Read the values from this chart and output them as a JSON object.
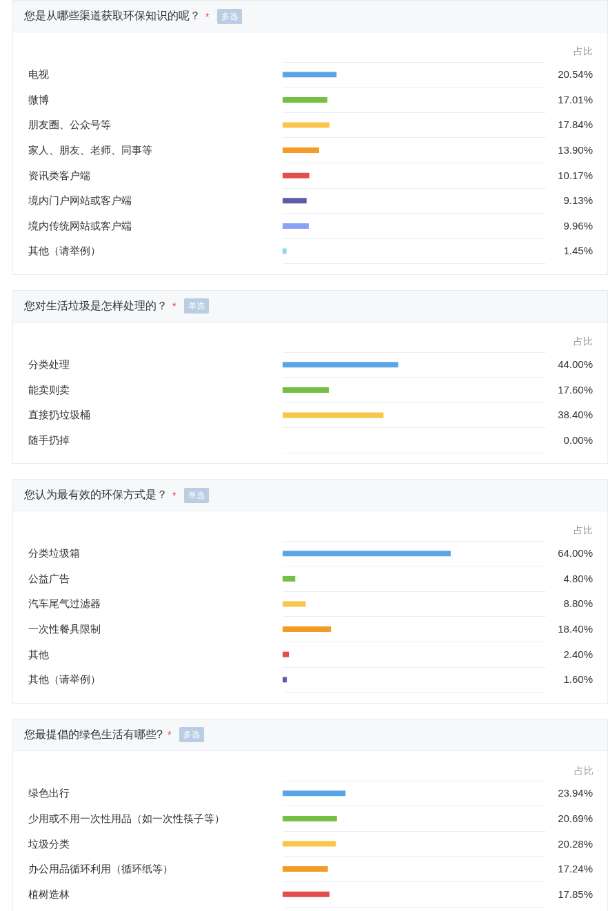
{
  "chart_data": [
    {
      "type": "bar",
      "orientation": "horizontal",
      "title": "您是从哪些渠道获取环保知识的呢？",
      "subtitle": "多选",
      "annotations": [
        "*"
      ],
      "xlabel": "占比",
      "categories": [
        "电视",
        "微博",
        "朋友圈、公众号等",
        "家人、朋友、老师、同事等",
        "资讯类客户端",
        "境内门户网站或客户端",
        "境内传统网站或客户端",
        "其他（请举例）"
      ],
      "values": [
        20.54,
        17.01,
        17.84,
        13.9,
        10.17,
        9.13,
        9.96,
        1.45
      ],
      "value_labels": [
        "20.54%",
        "17.01%",
        "17.84%",
        "13.90%",
        "10.17%",
        "9.13%",
        "9.96%",
        "1.45%"
      ],
      "colors": [
        "#5aa5e6",
        "#74bf44",
        "#f8c64b",
        "#f29b26",
        "#e24d4d",
        "#5b5ea6",
        "#8aa2f5",
        "#87d9e3"
      ],
      "xlim": [
        0,
        100
      ],
      "grid": "y",
      "tick_labels": "y"
    },
    {
      "type": "bar",
      "orientation": "horizontal",
      "title": "您对生活垃圾是怎样处理的？",
      "subtitle": "单选",
      "annotations": [
        "*"
      ],
      "xlabel": "占比",
      "categories": [
        "分类处理",
        "能卖则卖",
        "直接扔垃圾桶",
        "随手扔掉"
      ],
      "values": [
        44.0,
        17.6,
        38.4,
        0.0
      ],
      "value_labels": [
        "44.00%",
        "17.60%",
        "38.40%",
        "0.00%"
      ],
      "colors": [
        "#5aa5e6",
        "#74bf44",
        "#f8c64b",
        "#f29b26"
      ],
      "xlim": [
        0,
        100
      ],
      "grid": "y",
      "tick_labels": "y"
    },
    {
      "type": "bar",
      "orientation": "horizontal",
      "title": "您认为最有效的环保方式是？",
      "subtitle": "单选",
      "annotations": [
        "*"
      ],
      "xlabel": "占比",
      "categories": [
        "分类垃圾箱",
        "公益广告",
        "汽车尾气过滤器",
        "一次性餐具限制",
        "其他",
        "其他（请举例）"
      ],
      "values": [
        64.0,
        4.8,
        8.8,
        18.4,
        2.4,
        1.6
      ],
      "value_labels": [
        "64.00%",
        "4.80%",
        "8.80%",
        "18.40%",
        "2.40%",
        "1.60%"
      ],
      "colors": [
        "#5aa5e6",
        "#74bf44",
        "#f8c64b",
        "#f29b26",
        "#e24d4d",
        "#5b5ea6"
      ],
      "xlim": [
        0,
        100
      ],
      "grid": "y",
      "tick_labels": "y"
    },
    {
      "type": "bar",
      "orientation": "horizontal",
      "title": "您最提倡的绿色生活有哪些?",
      "subtitle": "多选",
      "annotations": [
        "*"
      ],
      "xlabel": "占比",
      "categories": [
        "绿色出行",
        "少用或不用一次性用品（如一次性筷子等）",
        "垃圾分类",
        "办公用品循环利用（循环纸等）",
        "植树造林"
      ],
      "values": [
        23.94,
        20.69,
        20.28,
        17.24,
        17.85
      ],
      "value_labels": [
        "23.94%",
        "20.69%",
        "20.28%",
        "17.24%",
        "17.85%"
      ],
      "colors": [
        "#5aa5e6",
        "#74bf44",
        "#f8c64b",
        "#f29b26",
        "#e24d4d"
      ],
      "xlim": [
        0,
        100
      ],
      "grid": "y",
      "tick_labels": "y"
    }
  ]
}
